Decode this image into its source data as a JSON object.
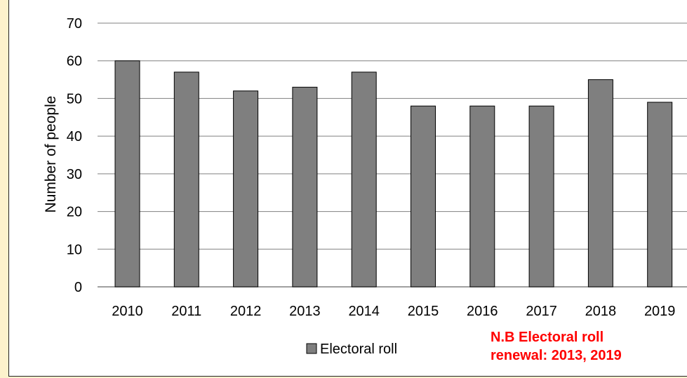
{
  "chart_data": {
    "type": "bar",
    "categories": [
      "2010",
      "2011",
      "2012",
      "2013",
      "2014",
      "2015",
      "2016",
      "2017",
      "2018",
      "2019"
    ],
    "series": [
      {
        "name": "Electoral roll",
        "values": [
          60,
          57,
          52,
          53,
          57,
          48,
          48,
          48,
          55,
          49
        ],
        "color": "#7f7f7f"
      }
    ],
    "ylabel": "Number of people",
    "ylim": [
      0,
      70
    ],
    "yticks": [
      0,
      10,
      20,
      30,
      40,
      50,
      60,
      70
    ],
    "grid": true,
    "legend": "bottom",
    "annotations": [
      "N.B Electoral roll\nrenewal: 2013, 2019"
    ]
  },
  "colors": {
    "background": "#fdf2cc",
    "plot_background": "#ffffff",
    "bar_fill": "#7f7f7f",
    "gridline": "#808080",
    "annotation": "#ff0000"
  }
}
